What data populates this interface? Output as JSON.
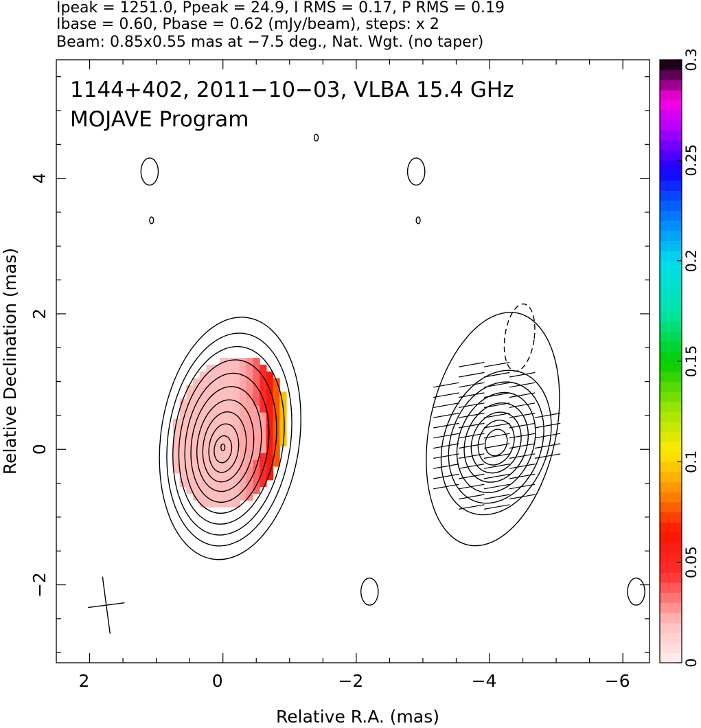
{
  "header": {
    "line1": "Ipeak = 1251.0, Ppeak = 24.9, I RMS = 0.17, P RMS = 0.19",
    "line2": "Ibase = 0.60, Pbase = 0.62 (mJy/beam), steps: x 2",
    "line3": "Beam: 0.85x0.55 mas at −7.5 deg., Nat. Wgt. (no taper)"
  },
  "chart_data": {
    "type": "heatmap",
    "title": "1144+402, 2011−10−03, VLBA 15.4 GHz",
    "subtitle": "MOJAVE Program",
    "xlabel": "Relative R.A. (mas)",
    "ylabel": "Relative Declination (mas)",
    "xlim": [
      2.5,
      -6.4
    ],
    "ylim": [
      -3.15,
      5.75
    ],
    "xticks": [
      2,
      0,
      -2,
      -4,
      -6
    ],
    "xtick_labels": [
      "2",
      "0",
      "−2",
      "−4",
      "−6"
    ],
    "yticks": [
      -2,
      0,
      2,
      4
    ],
    "ytick_labels": [
      "−2",
      "0",
      "2",
      "4"
    ],
    "colorbar": {
      "range": [
        0,
        0.3
      ],
      "ticks": [
        0,
        0.05,
        0.1,
        0.15,
        0.2,
        0.25,
        0.3
      ],
      "tick_labels": [
        "0",
        "0.05",
        "0.1",
        "0.15",
        "0.2",
        "0.25",
        "0.3"
      ]
    },
    "left_panel": {
      "center": [
        0,
        0
      ],
      "contour_semi_axes_mas": [
        [
          1.04,
          1.8
        ],
        [
          0.92,
          1.58
        ],
        [
          0.82,
          1.4
        ],
        [
          0.72,
          1.22
        ],
        [
          0.62,
          1.04
        ],
        [
          0.52,
          0.86
        ],
        [
          0.42,
          0.68
        ],
        [
          0.32,
          0.52
        ],
        [
          0.22,
          0.36
        ],
        [
          0.13,
          0.2
        ]
      ],
      "fractional_polarization_map": {
        "x_range": [
          0.75,
          -0.95
        ],
        "y_range": [
          -0.95,
          1.45
        ],
        "min_value": 0.02,
        "max_value": 0.13
      }
    },
    "right_panel": {
      "center": [
        -4.0,
        0.05
      ],
      "contour_semi_axes_mas": [
        [
          0.95,
          1.75
        ],
        [
          0.78,
          1.1
        ],
        [
          0.68,
          0.92
        ],
        [
          0.56,
          0.76
        ],
        [
          0.46,
          0.6
        ],
        [
          0.36,
          0.46
        ],
        [
          0.26,
          0.34
        ],
        [
          0.16,
          0.2
        ]
      ],
      "evpa_vector_angle_deg": -10
    },
    "noise_contours": [
      {
        "x": 1.1,
        "y": 4.1
      },
      {
        "x": -2.9,
        "y": 4.1
      },
      {
        "x": -2.2,
        "y": -2.1
      },
      {
        "x": -6.2,
        "y": -2.1
      },
      {
        "x": 1.07,
        "y": 3.38
      },
      {
        "x": -2.93,
        "y": 3.38
      },
      {
        "x": -1.4,
        "y": 4.6
      },
      {
        "x": 0,
        "y": 0.03
      }
    ],
    "beam": {
      "major_mas": 0.85,
      "minor_mas": 0.55,
      "pa_deg": -7.5
    }
  }
}
